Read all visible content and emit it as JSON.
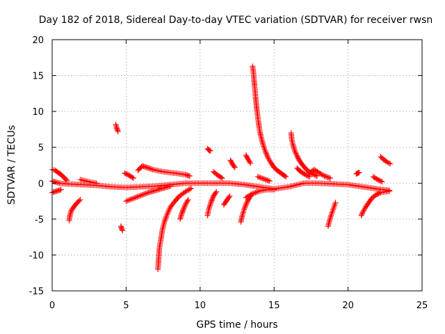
{
  "chart_data": {
    "type": "scatter",
    "title": "Day 182 of 2018, Sidereal Day-to-day VTEC variation (SDTVAR) for receiver rwsn",
    "xlabel": "GPS time / hours",
    "ylabel": "SDTVAR / TECUs",
    "xlim": [
      0,
      25
    ],
    "ylim": [
      -15,
      20
    ],
    "xticks": [
      0,
      5,
      10,
      15,
      20,
      25
    ],
    "yticks": [
      -15,
      -10,
      -5,
      0,
      5,
      10,
      15,
      20
    ],
    "grid": true,
    "marker": "+",
    "color": "#ff0000",
    "series": [
      {
        "name": "baseline",
        "points": [
          [
            0,
            0.3
          ],
          [
            0.5,
            0
          ],
          [
            1,
            -0.1
          ],
          [
            2,
            -0.2
          ],
          [
            3,
            -0.3
          ],
          [
            4,
            -0.5
          ],
          [
            5,
            -0.6
          ],
          [
            6,
            -0.5
          ],
          [
            7,
            -0.4
          ],
          [
            8,
            -0.2
          ],
          [
            9,
            0
          ],
          [
            10,
            0
          ],
          [
            11,
            0
          ],
          [
            12,
            0
          ],
          [
            13,
            -0.2
          ],
          [
            14,
            -0.5
          ],
          [
            15,
            -0.8
          ],
          [
            16,
            -0.5
          ],
          [
            17,
            0
          ],
          [
            18,
            0
          ],
          [
            19,
            -0.1
          ],
          [
            20,
            -0.2
          ],
          [
            21,
            -0.5
          ],
          [
            22,
            -0.8
          ],
          [
            22.8,
            -1
          ]
        ]
      },
      {
        "name": "arc-start-high",
        "points": [
          [
            0,
            1.9
          ],
          [
            0.2,
            1.8
          ],
          [
            0.4,
            1.5
          ],
          [
            0.6,
            1.2
          ],
          [
            0.8,
            0.8
          ],
          [
            1,
            0.4
          ]
        ]
      },
      {
        "name": "arc-start-low",
        "points": [
          [
            0,
            -1.3
          ],
          [
            0.3,
            -1.1
          ],
          [
            0.6,
            -0.9
          ]
        ]
      },
      {
        "name": "arc-1.2",
        "points": [
          [
            1.15,
            -5.2
          ],
          [
            1.2,
            -4.5
          ],
          [
            1.3,
            -3.8
          ],
          [
            1.5,
            -3.2
          ],
          [
            1.7,
            -2.7
          ],
          [
            1.9,
            -2.3
          ]
        ]
      },
      {
        "name": "arc-2",
        "points": [
          [
            1.9,
            0.5
          ],
          [
            2.3,
            0.3
          ],
          [
            2.7,
            0.1
          ],
          [
            3,
            0
          ]
        ]
      },
      {
        "name": "cluster-4.3",
        "points": [
          [
            4.3,
            8.2
          ],
          [
            4.35,
            7.8
          ],
          [
            4.4,
            7.5
          ],
          [
            4.45,
            7.2
          ]
        ]
      },
      {
        "name": "cluster-4.7",
        "points": [
          [
            4.65,
            -6
          ],
          [
            4.7,
            -6.3
          ],
          [
            4.75,
            -6.6
          ]
        ]
      },
      {
        "name": "arc-4.9",
        "points": [
          [
            4.9,
            1.4
          ],
          [
            5.2,
            1.1
          ],
          [
            5.5,
            0.7
          ]
        ]
      },
      {
        "name": "arc-5rise",
        "points": [
          [
            5,
            -2.5
          ],
          [
            5.5,
            -2.1
          ],
          [
            6,
            -1.7
          ],
          [
            6.5,
            -1.3
          ],
          [
            7,
            -1
          ],
          [
            7.5,
            -0.7
          ],
          [
            8,
            -0.4
          ]
        ]
      },
      {
        "name": "arc-6high",
        "points": [
          [
            5.8,
            1.8
          ],
          [
            6.1,
            2.4
          ],
          [
            6.4,
            2.2
          ],
          [
            6.8,
            1.9
          ],
          [
            7.5,
            1.6
          ],
          [
            8.3,
            1.4
          ],
          [
            9,
            1.2
          ],
          [
            9.3,
            1
          ]
        ]
      },
      {
        "name": "arc-7dip",
        "points": [
          [
            7.15,
            -12
          ],
          [
            7.2,
            -10.5
          ],
          [
            7.25,
            -9
          ],
          [
            7.35,
            -7.8
          ],
          [
            7.45,
            -6.5
          ],
          [
            7.6,
            -5.3
          ],
          [
            7.8,
            -4.2
          ],
          [
            8,
            -3.3
          ],
          [
            8.3,
            -2.5
          ],
          [
            8.6,
            -1.8
          ],
          [
            9,
            -1.2
          ],
          [
            9.4,
            -0.7
          ]
        ]
      },
      {
        "name": "arc-8.6",
        "points": [
          [
            8.65,
            -5
          ],
          [
            8.75,
            -4.3
          ],
          [
            8.9,
            -3.5
          ],
          [
            9.05,
            -2.8
          ],
          [
            9.2,
            -2.3
          ]
        ]
      },
      {
        "name": "cluster-10.5",
        "points": [
          [
            10.5,
            4.8
          ],
          [
            10.6,
            4.6
          ],
          [
            10.7,
            4.5
          ]
        ]
      },
      {
        "name": "arc-10.5",
        "points": [
          [
            10.5,
            -4.5
          ],
          [
            10.6,
            -3.5
          ],
          [
            10.75,
            -2.6
          ],
          [
            10.9,
            -1.8
          ],
          [
            11.1,
            -1.2
          ]
        ]
      },
      {
        "name": "arc-11",
        "points": [
          [
            10.9,
            1.6
          ],
          [
            11.2,
            1.1
          ],
          [
            11.5,
            0.7
          ]
        ]
      },
      {
        "name": "arc-12",
        "points": [
          [
            11.6,
            -3
          ],
          [
            11.8,
            -2.4
          ],
          [
            12,
            -1.8
          ]
        ]
      },
      {
        "name": "arc-12.1",
        "points": [
          [
            12.05,
            3.2
          ],
          [
            12.2,
            2.6
          ],
          [
            12.35,
            2.2
          ]
        ]
      },
      {
        "name": "arc-12.8dip",
        "points": [
          [
            12.75,
            -5.4
          ],
          [
            12.85,
            -4.5
          ],
          [
            13,
            -3.5
          ],
          [
            13.2,
            -2.5
          ],
          [
            13.45,
            -1.7
          ]
        ]
      },
      {
        "name": "arc-13.3",
        "points": [
          [
            13.1,
            3.9
          ],
          [
            13.25,
            3.3
          ],
          [
            13.4,
            2.8
          ]
        ]
      },
      {
        "name": "spike-13.6",
        "points": [
          [
            13.55,
            16.3
          ],
          [
            13.6,
            15.5
          ],
          [
            13.65,
            14.3
          ],
          [
            13.7,
            13.2
          ],
          [
            13.75,
            12
          ],
          [
            13.8,
            10.9
          ],
          [
            13.85,
            10
          ],
          [
            13.9,
            9.2
          ],
          [
            13.95,
            8.4
          ],
          [
            14,
            7.7
          ],
          [
            14.05,
            7.1
          ],
          [
            14.1,
            6.6
          ],
          [
            14.2,
            5.8
          ],
          [
            14.3,
            5.1
          ],
          [
            14.4,
            4.5
          ],
          [
            14.5,
            4
          ],
          [
            14.6,
            3.5
          ],
          [
            14.8,
            2.8
          ],
          [
            15,
            2.2
          ],
          [
            15.2,
            1.8
          ],
          [
            15.4,
            1.5
          ],
          [
            15.6,
            1.2
          ],
          [
            15.8,
            0.9
          ]
        ]
      },
      {
        "name": "arc-14-neg",
        "points": [
          [
            13.1,
            -2
          ],
          [
            13.5,
            -1.5
          ],
          [
            14,
            -1.1
          ],
          [
            14.5,
            -0.9
          ],
          [
            15,
            -0.9
          ]
        ]
      },
      {
        "name": "arc-14.5",
        "points": [
          [
            13.9,
            0.9
          ],
          [
            14.3,
            0.6
          ],
          [
            14.7,
            0.3
          ]
        ]
      },
      {
        "name": "spike-16.2",
        "points": [
          [
            16.15,
            7
          ],
          [
            16.2,
            6
          ],
          [
            16.3,
            5.2
          ],
          [
            16.4,
            4.5
          ],
          [
            16.55,
            3.8
          ],
          [
            16.7,
            3.2
          ],
          [
            16.9,
            2.6
          ],
          [
            17.1,
            2.1
          ],
          [
            17.3,
            1.7
          ],
          [
            17.6,
            1.3
          ],
          [
            17.9,
            1
          ]
        ]
      },
      {
        "name": "arc-16.6",
        "points": [
          [
            16.55,
            2.1
          ],
          [
            16.8,
            1.6
          ],
          [
            17.1,
            1.2
          ],
          [
            17.4,
            0.9
          ]
        ]
      },
      {
        "name": "arc-17.5",
        "points": [
          [
            17.4,
            1.4
          ],
          [
            17.7,
            1.9
          ],
          [
            18,
            1.5
          ],
          [
            18.4,
            1
          ],
          [
            18.8,
            0.7
          ]
        ]
      },
      {
        "name": "arc-18.8dip",
        "points": [
          [
            18.65,
            -6
          ],
          [
            18.75,
            -5.2
          ],
          [
            18.85,
            -4.5
          ],
          [
            18.95,
            -3.9
          ],
          [
            19.05,
            -3.3
          ],
          [
            19.15,
            -2.7
          ]
        ]
      },
      {
        "name": "cluster-20.7",
        "points": [
          [
            20.55,
            1.3
          ],
          [
            20.65,
            1.4
          ],
          [
            20.75,
            1.5
          ]
        ]
      },
      {
        "name": "arc-21dip",
        "points": [
          [
            20.9,
            -4.5
          ],
          [
            21,
            -4
          ],
          [
            21.2,
            -3.3
          ],
          [
            21.4,
            -2.7
          ],
          [
            21.6,
            -2.1
          ],
          [
            21.9,
            -1.6
          ],
          [
            22.2,
            -1.3
          ],
          [
            22.5,
            -1.2
          ],
          [
            22.8,
            -1.1
          ]
        ]
      },
      {
        "name": "arc-22.3",
        "points": [
          [
            22.2,
            3.7
          ],
          [
            22.4,
            3.3
          ],
          [
            22.6,
            3
          ],
          [
            22.85,
            2.7
          ]
        ]
      },
      {
        "name": "arc-21.7",
        "points": [
          [
            21.7,
            0.9
          ],
          [
            22,
            0.5
          ],
          [
            22.3,
            0.2
          ]
        ]
      }
    ]
  }
}
